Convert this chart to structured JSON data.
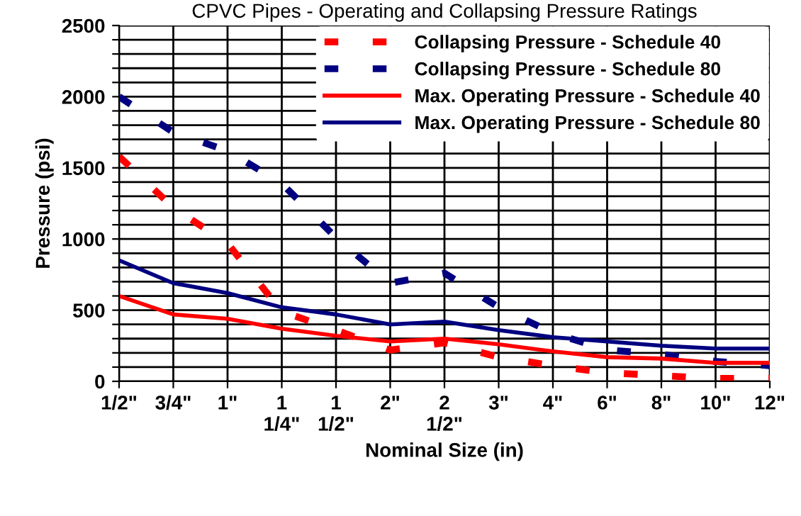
{
  "chart_data": {
    "type": "line",
    "title": "CPVC Pipes - Operating and Collapsing Pressure Ratings",
    "xlabel": "Nominal Size (in)",
    "ylabel": "Pressure (psi)",
    "categories": [
      "1/2\"",
      "3/4\"",
      "1\"",
      "1\n1/4\"",
      "1\n1/2\"",
      "2\"",
      "2\n1/2\"",
      "3\"",
      "4\"",
      "6\"",
      "8\"",
      "10\"",
      "12\""
    ],
    "series": [
      {
        "name": "Collapsing Pressure - Schedule 40",
        "color": "#ff0000",
        "line_style": "dashed",
        "values": [
          1580,
          1220,
          970,
          490,
          360,
          220,
          270,
          170,
          110,
          60,
          40,
          20,
          20
        ]
      },
      {
        "name": "Collapsing Pressure - Schedule 80",
        "color": "#000080",
        "line_style": "dashed",
        "values": [
          2000,
          1750,
          1620,
          1390,
          1010,
          690,
          760,
          520,
          340,
          220,
          190,
          140,
          110
        ]
      },
      {
        "name": "Max. Operating Pressure - Schedule 40",
        "color": "#ff0000",
        "line_style": "solid",
        "values": [
          600,
          470,
          440,
          370,
          320,
          280,
          300,
          260,
          210,
          170,
          160,
          130,
          130
        ]
      },
      {
        "name": "Max. Operating Pressure - Schedule 80",
        "color": "#000080",
        "line_style": "solid",
        "values": [
          850,
          690,
          620,
          520,
          470,
          400,
          420,
          360,
          310,
          280,
          250,
          230,
          230
        ]
      }
    ],
    "ylim": [
      0,
      2500
    ],
    "yticks": [
      0,
      {
        "value": 100,
        "label": null
      },
      {
        "value": 200,
        "label": null
      },
      {
        "value": 300,
        "label": null
      },
      {
        "value": 400,
        "label": null
      },
      500,
      {
        "value": 600,
        "label": null
      },
      {
        "value": 700,
        "label": null
      },
      {
        "value": 800,
        "label": null
      },
      {
        "value": 900,
        "label": null
      },
      1000,
      {
        "value": 1100,
        "label": null
      },
      {
        "value": 1200,
        "label": null
      },
      {
        "value": 1300,
        "label": null
      },
      {
        "value": 1400,
        "label": null
      },
      1500,
      {
        "value": 1600,
        "label": null
      },
      {
        "value": 1700,
        "label": null
      },
      {
        "value": 1800,
        "label": null
      },
      {
        "value": 1900,
        "label": null
      },
      2000,
      {
        "value": 2100,
        "label": null
      },
      {
        "value": 2200,
        "label": null
      },
      {
        "value": 2300,
        "label": null
      },
      {
        "value": 2400,
        "label": null
      },
      2500
    ],
    "grid": true,
    "legend": "top right",
    "marker": "none"
  }
}
